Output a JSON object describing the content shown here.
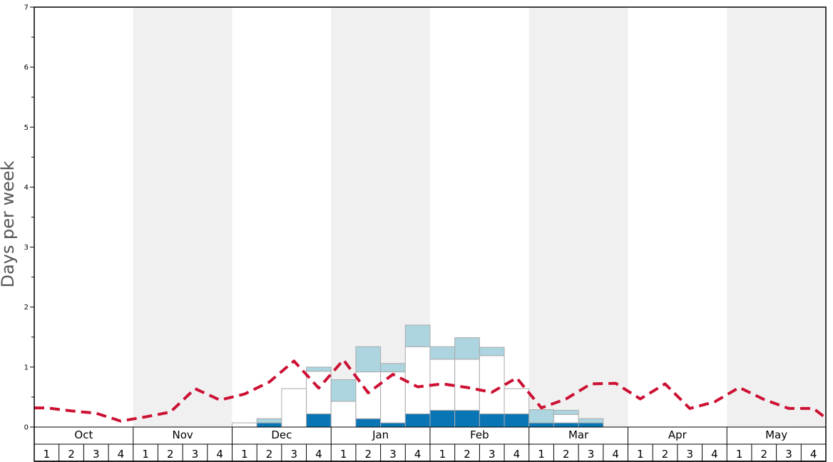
{
  "chart_data": {
    "type": "bar",
    "ylabel": "Days per week",
    "ylim": [
      0,
      7
    ],
    "yticks": [
      0,
      1,
      2,
      3,
      4,
      5,
      6,
      7
    ],
    "months": [
      "Oct",
      "Nov",
      "Dec",
      "Jan",
      "Feb",
      "Mar",
      "Apr",
      "May"
    ],
    "week_labels": [
      "1",
      "2",
      "3",
      "4"
    ],
    "colors": {
      "month_band_alt": "#f0f0f0",
      "series_dark": "#0a75b5",
      "series_white": "#ffffff",
      "series_light": "#acd5e0",
      "bar_outline": "#aaaaaa",
      "average_line": "#cc1133"
    },
    "series": [
      {
        "values": [
          0,
          0,
          0,
          0,
          0,
          0,
          0,
          0,
          0,
          0.07,
          0,
          0.22,
          0,
          0.14,
          0.07,
          0.22,
          0.28,
          0.28,
          0.22,
          0.22,
          0.07,
          0.07,
          0.07,
          0,
          0,
          0,
          0,
          0,
          0,
          0,
          0,
          0
        ]
      },
      {
        "values": [
          0,
          0,
          0,
          0,
          0,
          0,
          0,
          0,
          0.07,
          0,
          0.64,
          0.71,
          0.43,
          0.78,
          0.85,
          1.12,
          0.85,
          0.85,
          0.97,
          0.42,
          0,
          0.14,
          0,
          0,
          0,
          0,
          0,
          0,
          0,
          0,
          0,
          0
        ]
      },
      {
        "values": [
          0,
          0,
          0,
          0,
          0,
          0,
          0,
          0,
          0,
          0.07,
          0,
          0.07,
          0.36,
          0.42,
          0.14,
          0.36,
          0.21,
          0.36,
          0.14,
          0,
          0.22,
          0.07,
          0.07,
          0,
          0,
          0,
          0,
          0,
          0,
          0,
          0,
          0
        ]
      }
    ],
    "average_line": {
      "values": [
        0.32,
        0.27,
        0.23,
        0.1,
        0.17,
        0.25,
        0.64,
        0.45,
        0.55,
        0.75,
        1.1,
        0.65,
        1.12,
        0.57,
        0.88,
        0.67,
        0.72,
        0.66,
        0.58,
        0.82,
        0.32,
        0.47,
        0.72,
        0.73,
        0.47,
        0.72,
        0.31,
        0.42,
        0.66,
        0.46,
        0.31,
        0.31
      ],
      "end_value": 0.15
    }
  }
}
